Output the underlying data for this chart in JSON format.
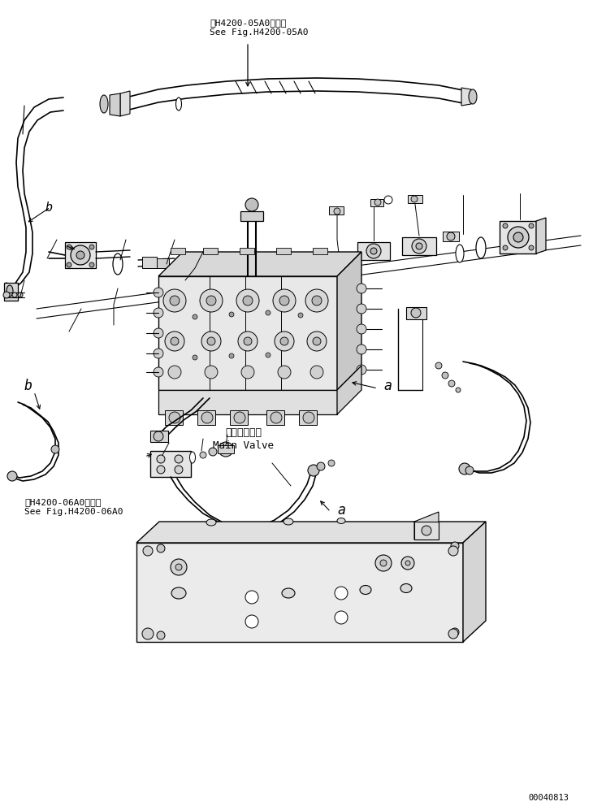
{
  "bg_color": "#ffffff",
  "lc": "#000000",
  "figsize": [
    7.3,
    9.92
  ],
  "dpi": 100,
  "text_top1": "第H4200-05A0図参照",
  "text_top2": "See Fig.H4200-05A0",
  "text_bottom_left1": "第H4200-06A0図参照",
  "text_bottom_left2": "See Fig.H4200-06A0",
  "text_main_valve_jp": "メインバルブ",
  "text_main_valve_en": "Main Valve",
  "text_a": "a",
  "text_b": "b",
  "watermark": "00040813"
}
